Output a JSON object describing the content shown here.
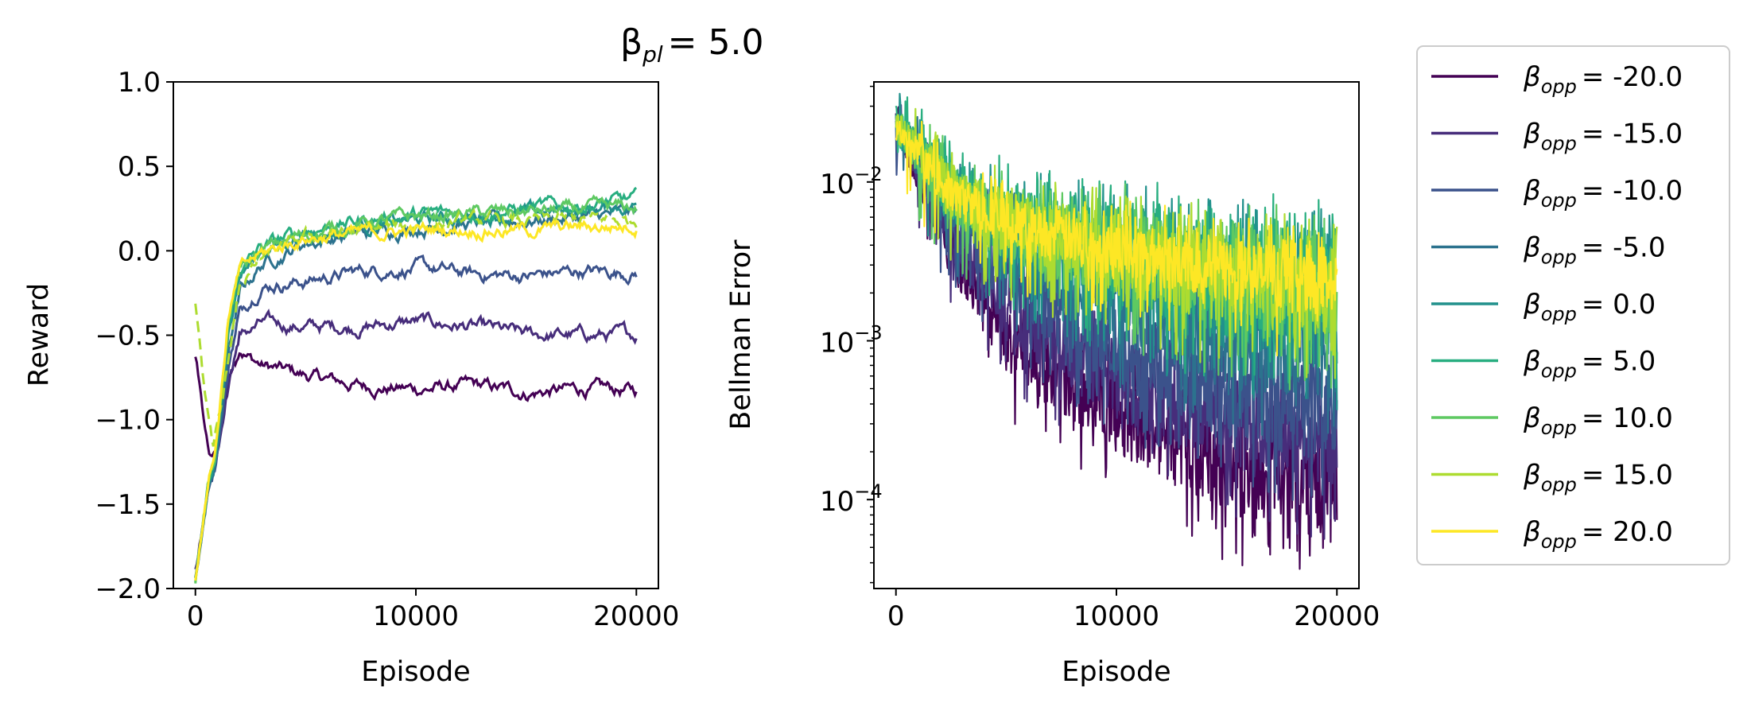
{
  "figure": {
    "title_symbol": "β",
    "title_subscript": "pl",
    "title_value": "= 5.0"
  },
  "legend": {
    "symbol": "β",
    "subscript": "opp"
  },
  "chart_data": [
    {
      "type": "line",
      "title": "",
      "xlabel": "Episode",
      "ylabel": "Reward",
      "xlim": [
        -1000,
        21000
      ],
      "ylim": [
        -2.0,
        1.0
      ],
      "xticks": [
        0,
        10000,
        20000
      ],
      "xtick_labels": [
        "0",
        "10000",
        "20000"
      ],
      "yticks": [
        1.0,
        0.5,
        0.0,
        -0.5,
        -1.0,
        -1.5,
        -2.0
      ],
      "ytick_labels": [
        "1.0",
        "0.5",
        "0.0",
        "−0.5",
        "−1.0",
        "−1.5",
        "−2.0"
      ],
      "series": [
        {
          "name": "-20.0",
          "color": "#440154",
          "x": [
            0,
            600,
            900,
            1500,
            2000,
            3000,
            5000,
            7500,
            10000,
            12500,
            15000,
            17500,
            20000
          ],
          "values": [
            -0.62,
            -1.2,
            -1.22,
            -0.75,
            -0.6,
            -0.68,
            -0.74,
            -0.8,
            -0.82,
            -0.8,
            -0.84,
            -0.82,
            -0.83
          ]
        },
        {
          "name": "-15.0",
          "color": "#472d7b",
          "x": [
            0,
            600,
            900,
            1500,
            2000,
            3000,
            5000,
            7500,
            10000,
            12500,
            15000,
            17500,
            20000
          ],
          "values": [
            -1.9,
            -1.38,
            -1.28,
            -0.8,
            -0.5,
            -0.43,
            -0.45,
            -0.45,
            -0.42,
            -0.45,
            -0.5,
            -0.5,
            -0.5
          ]
        },
        {
          "name": "-10.0",
          "color": "#3b528b",
          "x": [
            0,
            600,
            900,
            1500,
            2000,
            3000,
            5000,
            7500,
            10000,
            12500,
            15000,
            17500,
            20000
          ],
          "values": [
            -1.95,
            -1.4,
            -1.3,
            -0.7,
            -0.35,
            -0.2,
            -0.18,
            -0.12,
            -0.1,
            -0.14,
            -0.15,
            -0.12,
            -0.13
          ]
        },
        {
          "name": "-5.0",
          "color": "#2c728e",
          "x": [
            0,
            600,
            900,
            1500,
            2000,
            3000,
            5000,
            7500,
            10000,
            12500,
            15000,
            17500,
            20000
          ],
          "values": [
            -1.95,
            -1.4,
            -1.28,
            -0.6,
            -0.25,
            -0.08,
            0.05,
            0.1,
            0.14,
            0.16,
            0.18,
            0.2,
            0.22
          ]
        },
        {
          "name": "0.0",
          "color": "#21918c",
          "x": [
            0,
            600,
            900,
            1500,
            2000,
            3000,
            5000,
            7500,
            10000,
            12500,
            15000,
            17500,
            20000
          ],
          "values": [
            -1.95,
            -1.38,
            -1.25,
            -0.5,
            -0.15,
            0.0,
            0.1,
            0.14,
            0.18,
            0.2,
            0.22,
            0.24,
            0.27
          ]
        },
        {
          "name": "5.0",
          "color": "#28ae80",
          "x": [
            0,
            600,
            900,
            1500,
            2000,
            3000,
            5000,
            7500,
            10000,
            12500,
            15000,
            17500,
            20000
          ],
          "values": [
            -1.95,
            -1.36,
            -1.22,
            -0.45,
            -0.12,
            0.02,
            0.12,
            0.18,
            0.21,
            0.23,
            0.25,
            0.27,
            0.3
          ]
        },
        {
          "name": "10.0",
          "color": "#5ec962",
          "x": [
            0,
            600,
            900,
            1500,
            2000,
            3000,
            5000,
            7500,
            10000,
            12500,
            15000,
            17500,
            20000
          ],
          "values": [
            -1.95,
            -1.36,
            -1.22,
            -0.42,
            -0.1,
            0.0,
            0.1,
            0.16,
            0.2,
            0.22,
            0.23,
            0.24,
            0.25
          ]
        },
        {
          "name": "15.0",
          "color": "#addc30",
          "x": [
            0,
            400,
            800,
            1200,
            2000,
            3000,
            5000,
            7500,
            10000,
            12500,
            15000,
            17500,
            20000
          ],
          "values": [
            -0.3,
            -0.8,
            -1.15,
            -0.9,
            -0.2,
            -0.05,
            0.08,
            0.12,
            0.15,
            0.17,
            0.17,
            0.18,
            0.18
          ]
        },
        {
          "name": "20.0",
          "color": "#fde725",
          "x": [
            0,
            600,
            900,
            1500,
            2000,
            3000,
            5000,
            7500,
            10000,
            12500,
            15000,
            17500,
            20000
          ],
          "values": [
            -1.95,
            -1.35,
            -1.2,
            -0.4,
            -0.1,
            -0.02,
            0.08,
            0.1,
            0.12,
            0.13,
            0.12,
            0.14,
            0.15
          ]
        }
      ]
    },
    {
      "type": "line",
      "title": "",
      "xlabel": "Episode",
      "ylabel": "Bellman Error",
      "yscale": "log",
      "xlim": [
        -1000,
        21000
      ],
      "ylim_log10": [
        -4.56,
        -1.37
      ],
      "xticks": [
        0,
        10000,
        20000
      ],
      "xtick_labels": [
        "0",
        "10000",
        "20000"
      ],
      "yticks_log10": [
        -2,
        -3,
        -4
      ],
      "ytick_base": "10",
      "ytick_exponents": [
        "−2",
        "−3",
        "−4"
      ],
      "series_log10_upper_lower": [
        {
          "name": "-20.0",
          "color": "#440154",
          "x": [
            0,
            2500,
            5000,
            10000,
            15000,
            20000
          ],
          "upper": [
            -1.6,
            -2.3,
            -2.8,
            -3.2,
            -3.5,
            -3.6
          ],
          "lower": [
            -1.7,
            -2.6,
            -3.2,
            -3.7,
            -4.1,
            -4.2
          ]
        },
        {
          "name": "-15.0",
          "color": "#472d7b",
          "x": [
            0,
            2500,
            5000,
            10000,
            15000,
            20000
          ],
          "upper": [
            -1.6,
            -2.2,
            -2.6,
            -3.0,
            -3.2,
            -3.3
          ],
          "lower": [
            -1.7,
            -2.5,
            -3.0,
            -3.5,
            -3.8,
            -4.0
          ]
        },
        {
          "name": "-10.0",
          "color": "#3b528b",
          "x": [
            0,
            2500,
            5000,
            10000,
            15000,
            20000
          ],
          "upper": [
            -1.6,
            -2.1,
            -2.4,
            -2.8,
            -3.0,
            -3.1
          ],
          "lower": [
            -1.7,
            -2.4,
            -2.8,
            -3.3,
            -3.6,
            -3.8
          ]
        },
        {
          "name": "-5.0",
          "color": "#2c728e",
          "x": [
            0,
            2500,
            5000,
            10000,
            15000,
            20000
          ],
          "upper": [
            -1.55,
            -1.95,
            -2.2,
            -2.4,
            -2.6,
            -2.7
          ],
          "lower": [
            -1.7,
            -2.3,
            -2.6,
            -3.0,
            -3.3,
            -3.4
          ]
        },
        {
          "name": "0.0",
          "color": "#21918c",
          "x": [
            0,
            2500,
            5000,
            10000,
            15000,
            20000
          ],
          "upper": [
            -1.55,
            -1.9,
            -2.05,
            -2.15,
            -2.25,
            -2.3
          ],
          "lower": [
            -1.75,
            -2.25,
            -2.55,
            -2.85,
            -3.05,
            -3.2
          ]
        },
        {
          "name": "5.0",
          "color": "#28ae80",
          "x": [
            0,
            2500,
            5000,
            10000,
            15000,
            20000
          ],
          "upper": [
            -1.55,
            -1.85,
            -2.0,
            -2.1,
            -2.2,
            -2.25
          ],
          "lower": [
            -1.75,
            -2.25,
            -2.5,
            -2.8,
            -3.0,
            -3.1
          ]
        },
        {
          "name": "10.0",
          "color": "#5ec962",
          "x": [
            0,
            2500,
            5000,
            10000,
            15000,
            20000
          ],
          "upper": [
            -1.55,
            -1.9,
            -2.05,
            -2.15,
            -2.25,
            -2.3
          ],
          "lower": [
            -1.75,
            -2.25,
            -2.5,
            -2.75,
            -2.95,
            -3.05
          ]
        },
        {
          "name": "15.0",
          "color": "#addc30",
          "x": [
            0,
            2500,
            5000,
            10000,
            15000,
            20000
          ],
          "upper": [
            -1.55,
            -1.9,
            -2.05,
            -2.2,
            -2.3,
            -2.35
          ],
          "lower": [
            -1.75,
            -2.2,
            -2.45,
            -2.7,
            -2.9,
            -3.0
          ]
        },
        {
          "name": "20.0",
          "color": "#fde725",
          "x": [
            0,
            2500,
            5000,
            10000,
            15000,
            20000
          ],
          "upper": [
            -1.6,
            -1.95,
            -2.1,
            -2.25,
            -2.35,
            -2.4
          ],
          "lower": [
            -1.75,
            -2.2,
            -2.4,
            -2.6,
            -2.75,
            -2.85
          ]
        }
      ]
    }
  ]
}
